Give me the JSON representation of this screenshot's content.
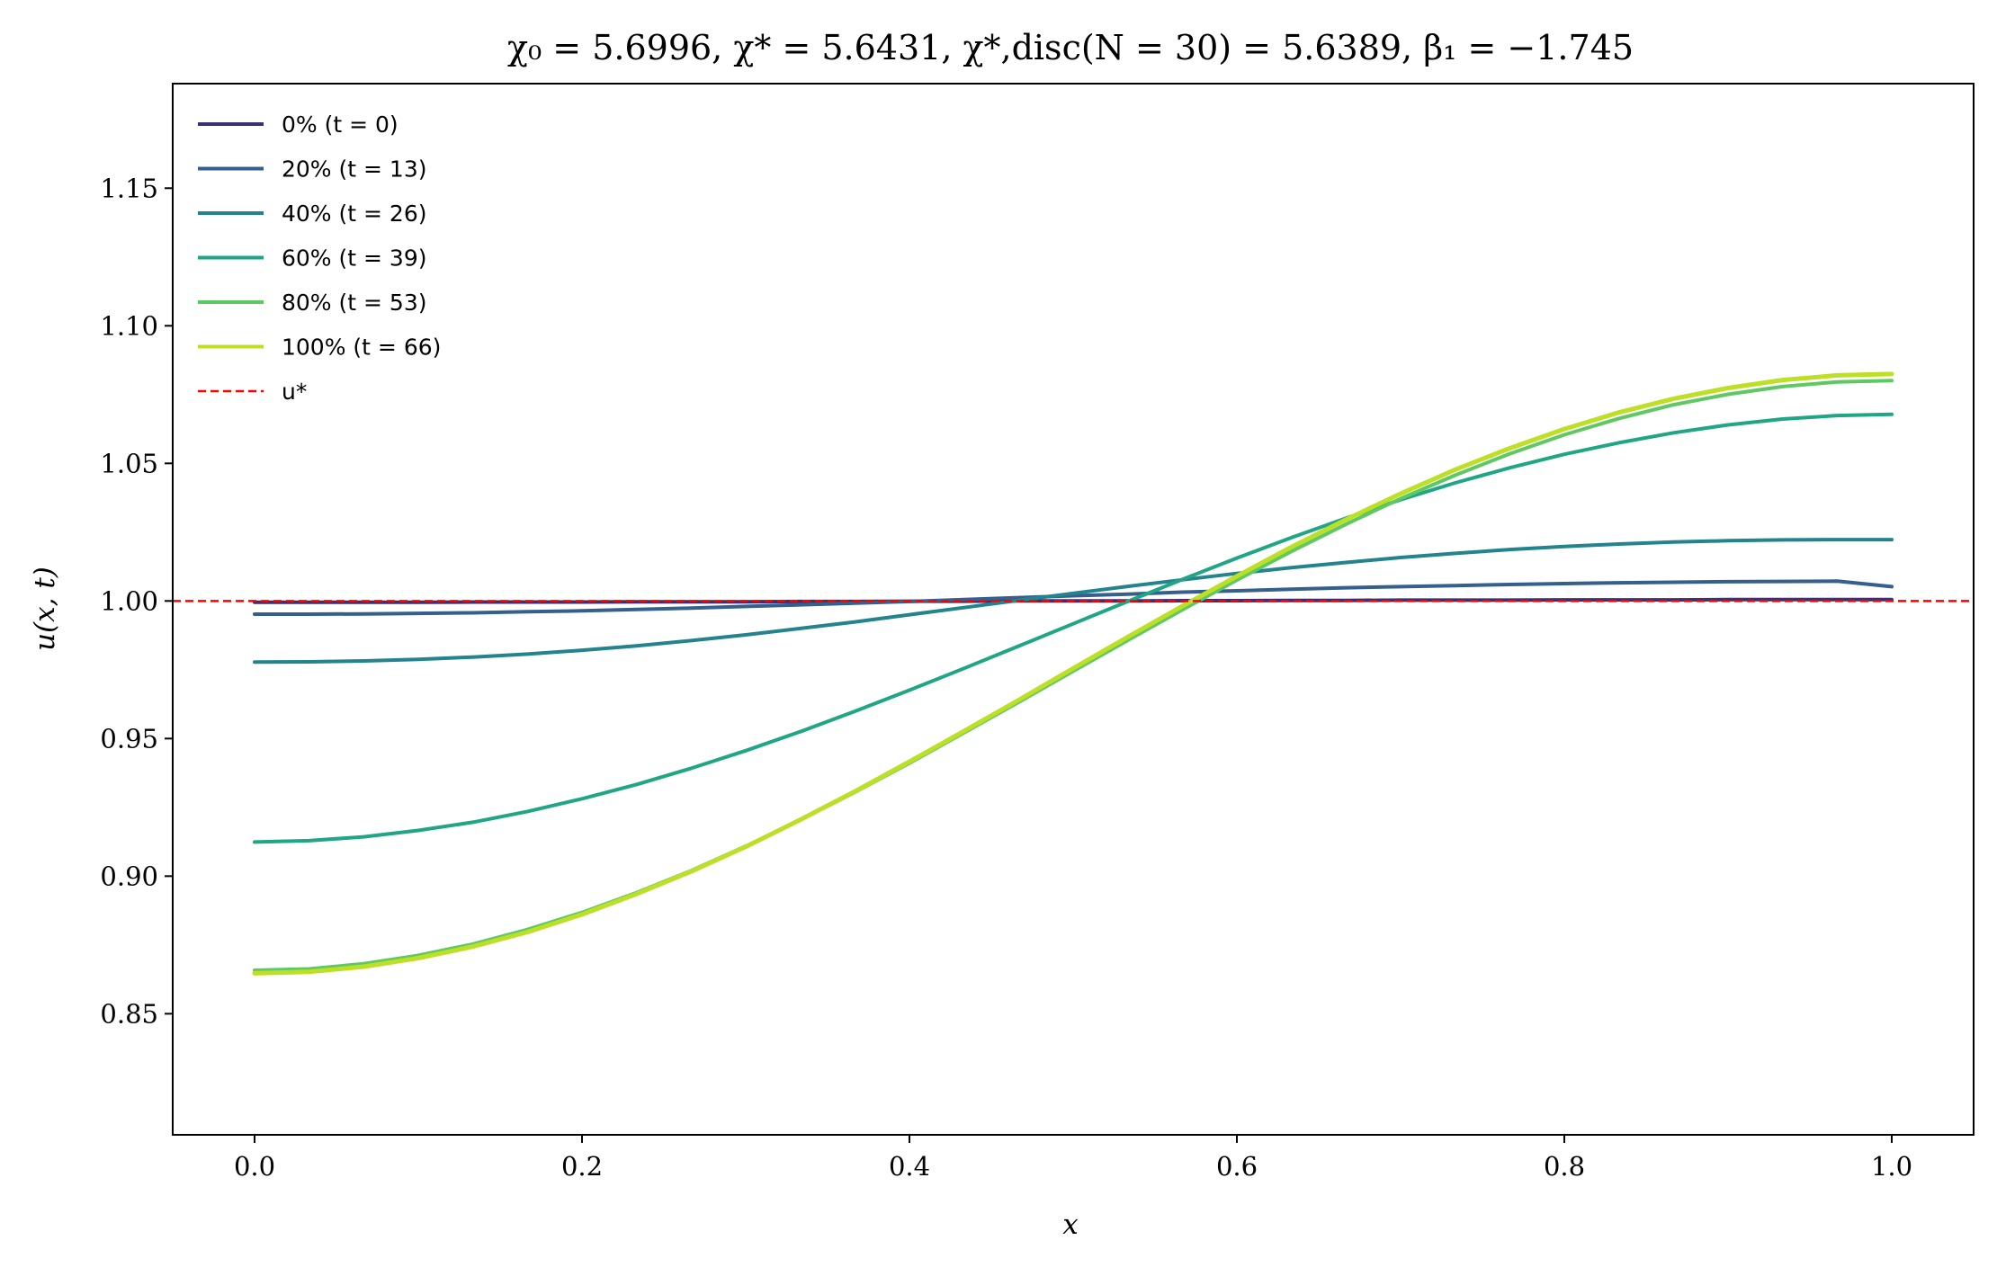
{
  "chart_data": {
    "type": "line",
    "title": "χ₀ = 5.6996,  χ* = 5.6431,  χ*,disc(N = 30) = 5.6389,  β₁ = −1.745",
    "xlabel": "x",
    "ylabel": "u(x, t)",
    "xlim": [
      -0.05,
      1.05
    ],
    "ylim": [
      0.806,
      1.188
    ],
    "xticks": [
      0.0,
      0.2,
      0.4,
      0.6,
      0.8,
      1.0
    ],
    "xtick_labels": [
      "0.0",
      "0.2",
      "0.4",
      "0.6",
      "0.8",
      "1.0"
    ],
    "yticks": [
      0.85,
      0.9,
      0.95,
      1.0,
      1.05,
      1.1,
      1.15
    ],
    "ytick_labels": [
      "0.85",
      "0.90",
      "0.95",
      "1.00",
      "1.05",
      "1.10",
      "1.15"
    ],
    "grid": false,
    "legend_position": "top-left",
    "x": [
      0.0,
      0.0333,
      0.0667,
      0.1,
      0.1333,
      0.1667,
      0.2,
      0.2333,
      0.2667,
      0.3,
      0.3333,
      0.3667,
      0.4,
      0.4333,
      0.4667,
      0.5,
      0.5333,
      0.5667,
      0.6,
      0.6333,
      0.6667,
      0.7,
      0.7333,
      0.7667,
      0.8,
      0.8333,
      0.8667,
      0.9,
      0.9333,
      0.9667,
      1.0
    ],
    "series": [
      {
        "name": "0% (t = 0)",
        "color": "#3e2f72",
        "values": [
          0.9995,
          0.9995,
          0.9995,
          0.9995,
          0.9996,
          0.9996,
          0.9996,
          0.9997,
          0.9997,
          0.9997,
          0.9998,
          0.9998,
          0.9999,
          0.9999,
          1.0,
          1.0,
          1.0,
          1.0001,
          1.0001,
          1.0002,
          1.0002,
          1.0003,
          1.0003,
          1.0003,
          1.0004,
          1.0004,
          1.0004,
          1.0005,
          1.0005,
          1.0005,
          1.0005
        ]
      },
      {
        "name": "20% (t = 13)",
        "color": "#355f8d",
        "values": [
          0.9952,
          0.9952,
          0.9953,
          0.9955,
          0.9957,
          0.9961,
          0.9964,
          0.9969,
          0.9974,
          0.998,
          0.9986,
          0.9992,
          0.9998,
          1.0005,
          1.0012,
          1.0019,
          1.0025,
          1.0032,
          1.0037,
          1.0043,
          1.0048,
          1.0052,
          1.0056,
          1.006,
          1.0063,
          1.0066,
          1.0068,
          1.007,
          1.0071,
          1.0072,
          1.0052
        ]
      },
      {
        "name": "40% (t = 26)",
        "color": "#24848e",
        "values": [
          0.9778,
          0.9779,
          0.9782,
          0.9788,
          0.9796,
          0.9807,
          0.9821,
          0.9837,
          0.9856,
          0.9877,
          0.99,
          0.9924,
          0.995,
          0.9976,
          1.0002,
          1.0028,
          1.0053,
          1.0077,
          1.01,
          1.0121,
          1.014,
          1.0158,
          1.0173,
          1.0187,
          1.0198,
          1.0207,
          1.0214,
          1.0219,
          1.0222,
          1.0223,
          1.0223
        ]
      },
      {
        "name": "60% (t = 39)",
        "color": "#21a685",
        "values": [
          0.9124,
          0.9129,
          0.9143,
          0.9166,
          0.9196,
          0.9235,
          0.9281,
          0.9333,
          0.9392,
          0.9456,
          0.9525,
          0.9599,
          0.9676,
          0.9755,
          0.9836,
          0.9917,
          0.9998,
          1.0078,
          1.0156,
          1.023,
          1.0301,
          1.0368,
          1.0429,
          1.0484,
          1.0533,
          1.0575,
          1.0611,
          1.064,
          1.0661,
          1.0674,
          1.0678
        ]
      },
      {
        "name": "80% (t = 53)",
        "color": "#5ec962",
        "values": [
          0.8658,
          0.8663,
          0.8682,
          0.8712,
          0.8753,
          0.8806,
          0.8868,
          0.894,
          0.902,
          0.9109,
          0.9204,
          0.9305,
          0.9411,
          0.9521,
          0.9632,
          0.9745,
          0.9857,
          0.9968,
          1.0076,
          1.018,
          1.0279,
          1.0372,
          1.0457,
          1.0535,
          1.0604,
          1.0663,
          1.0713,
          1.0751,
          1.0779,
          1.0796,
          1.0801
        ]
      },
      {
        "name": "100% (t = 66)",
        "color": "#bddf26",
        "values": [
          0.8647,
          0.8652,
          0.8671,
          0.8702,
          0.8744,
          0.8797,
          0.8861,
          0.8935,
          0.9017,
          0.9107,
          0.9205,
          0.9308,
          0.9416,
          0.9527,
          0.964,
          0.9755,
          0.9869,
          0.9981,
          1.009,
          1.0196,
          1.0296,
          1.039,
          1.0477,
          1.0555,
          1.0625,
          1.0685,
          1.0735,
          1.0774,
          1.0803,
          1.082,
          1.0825
        ]
      }
    ],
    "reference_line": {
      "name": "u*",
      "y": 1.0,
      "color": "#ff0000",
      "style": "dashed"
    }
  }
}
